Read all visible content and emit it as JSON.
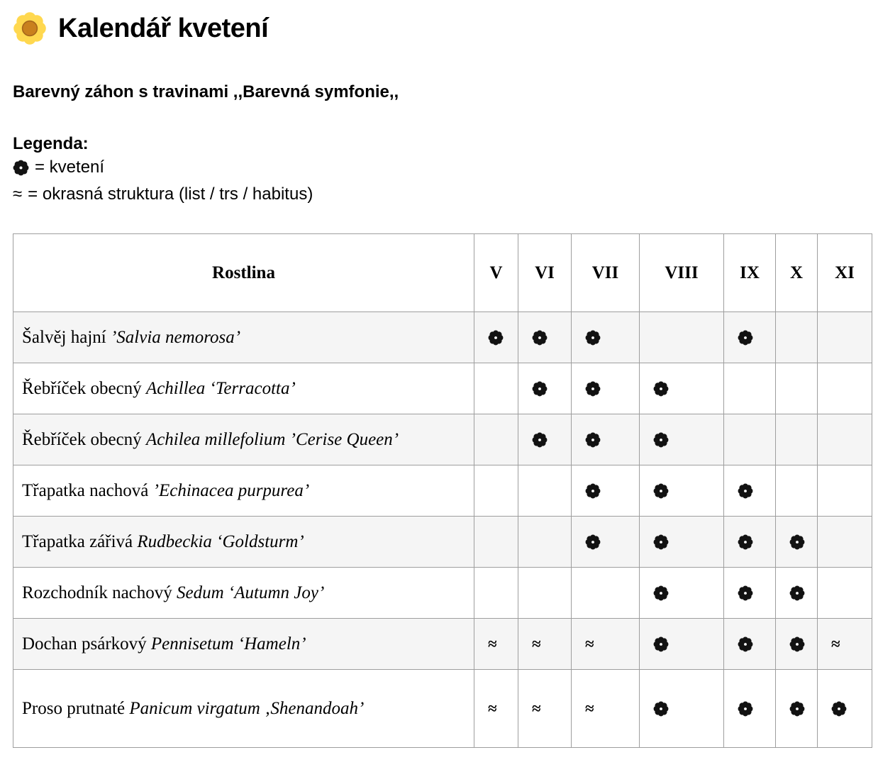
{
  "page": {
    "title": "Kalendář kvetení",
    "title_icon": "blossom-flower",
    "subtitle": "Barevný záhon s travinami ,,Barevná symfonie,,"
  },
  "legend": {
    "heading": "Legenda:",
    "items": [
      {
        "symbol": "flower",
        "text": "= kvetení"
      },
      {
        "symbol": "wave",
        "symbol_char": "≈",
        "text": "= okrasná struktura (list / trs / habitus)"
      }
    ]
  },
  "table": {
    "plant_header": "Rostlina",
    "months": [
      "V",
      "VI",
      "VII",
      "VIII",
      "IX",
      "X",
      "XI"
    ],
    "symbol_chars": {
      "flower": "✾",
      "wave": "≈"
    },
    "rows": [
      {
        "name": "Šalvěj hajní",
        "species": "’Salvia nemorosa’",
        "cells": [
          "flower",
          "flower",
          "flower",
          "",
          "flower",
          "",
          ""
        ]
      },
      {
        "name": "Řebříček obecný",
        "species": "Achillea ‘Terracotta’",
        "cells": [
          "",
          "flower",
          "flower",
          "flower",
          "",
          "",
          ""
        ]
      },
      {
        "name": "Řebříček obecný",
        "species": "Achilea millefolium ’Cerise Queen’",
        "cells": [
          "",
          "flower",
          "flower",
          "flower",
          "",
          "",
          ""
        ]
      },
      {
        "name": "Třapatka nachová",
        "species": "’Echinacea purpurea’",
        "cells": [
          "",
          "",
          "flower",
          "flower",
          "flower",
          "",
          ""
        ]
      },
      {
        "name": "Třapatka zářivá",
        "species": "Rudbeckia ‘Goldsturm’",
        "cells": [
          "",
          "",
          "flower",
          "flower",
          "flower",
          "flower",
          ""
        ]
      },
      {
        "name": "Rozchodník nachový",
        "species": "Sedum ‘Autumn Joy’",
        "cells": [
          "",
          "",
          "",
          "flower",
          "flower",
          "flower",
          ""
        ]
      },
      {
        "name": "Dochan psárkový",
        "species": "Pennisetum ‘Hameln’",
        "cells": [
          "wave",
          "wave",
          "wave",
          "flower",
          "flower",
          "flower",
          "wave"
        ]
      },
      {
        "name": "Proso prutnaté",
        "species": "Panicum virgatum ‚Shenandoah’",
        "cells": [
          "wave",
          "wave",
          "wave",
          "flower",
          "flower",
          "flower",
          "flower"
        ]
      }
    ]
  },
  "colors": {
    "row_stripe": "#f5f5f5",
    "table_border": "#9e9e9e",
    "flower_glyph": "#121212",
    "daisy_petal": "#ffd84f",
    "daisy_center": "#c9801e",
    "text": "#000000"
  }
}
